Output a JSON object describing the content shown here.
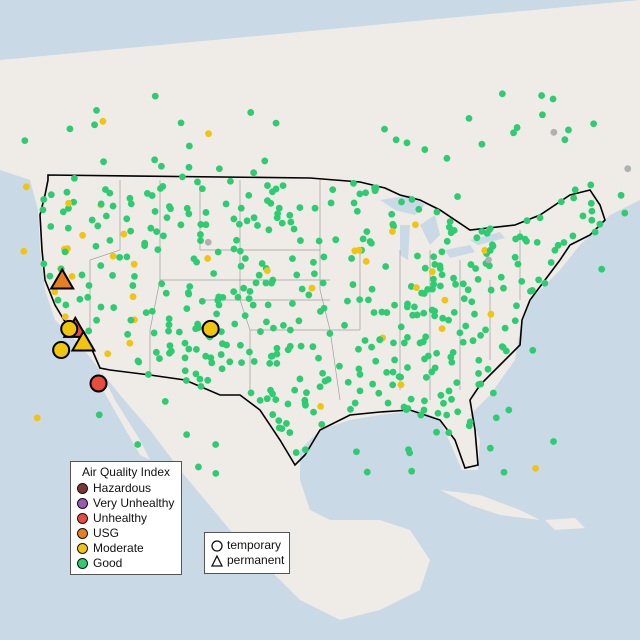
{
  "legend": {
    "title": "Air Quality Index",
    "items": [
      {
        "label": "Hazardous",
        "color": "#7e3535"
      },
      {
        "label": "Very Unhealthy",
        "color": "#9b59b6"
      },
      {
        "label": "Unhealthy",
        "color": "#e74c3c"
      },
      {
        "label": "USG",
        "color": "#e67e22"
      },
      {
        "label": "Moderate",
        "color": "#f1c40f"
      },
      {
        "label": "Good",
        "color": "#2ecc71"
      }
    ]
  },
  "type_legend": {
    "items": [
      {
        "label": "temporary",
        "shape": "circle"
      },
      {
        "label": "permanent",
        "shape": "triangle"
      }
    ]
  },
  "colors": {
    "ocean": "#c9d9e6",
    "land": "#efebe7",
    "border": "#000000",
    "state_lines": "#a0a0a0",
    "no_data": "#b0b0b0"
  },
  "highlighted_sites": [
    {
      "lon": -120.6,
      "lat": 40.7,
      "category": "USG",
      "shape": "triangle"
    },
    {
      "lon": -119.3,
      "lat": 36.8,
      "category": "Unhealthy",
      "shape": "triangle"
    },
    {
      "lon": -118.5,
      "lat": 35.7,
      "category": "Moderate",
      "shape": "triangle"
    },
    {
      "lon": -119.9,
      "lat": 36.8,
      "category": "Moderate",
      "shape": "circle"
    },
    {
      "lon": -120.7,
      "lat": 35.1,
      "category": "Moderate",
      "shape": "circle"
    },
    {
      "lon": -105.9,
      "lat": 36.8,
      "category": "Moderate",
      "shape": "circle"
    },
    {
      "lon": -117.0,
      "lat": 32.4,
      "category": "Unhealthy",
      "shape": "circle"
    }
  ]
}
